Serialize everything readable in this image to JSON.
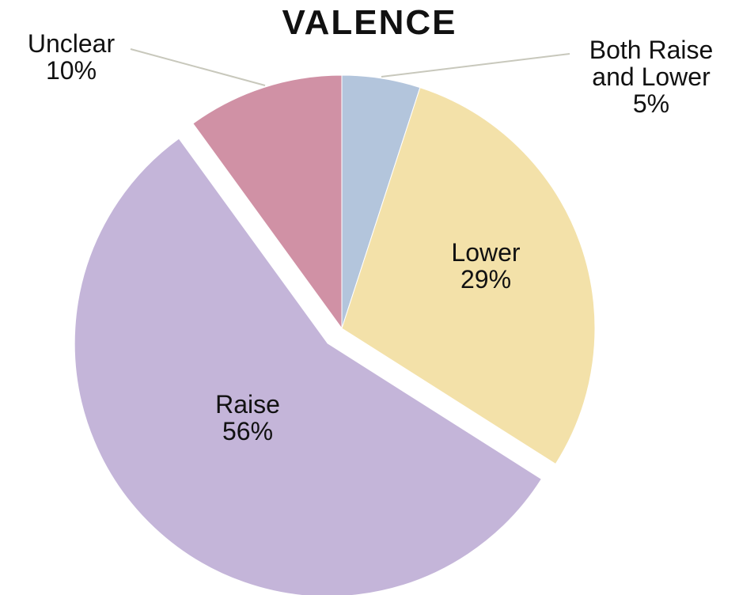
{
  "chart_data": {
    "type": "pie",
    "title": "VALENCE",
    "categories": [
      "Both Raise and Lower",
      "Lower",
      "Raise",
      "Unclear"
    ],
    "values": [
      5,
      29,
      56,
      10
    ],
    "value_labels": [
      "5%",
      "29%",
      "56%",
      "10%"
    ],
    "colors": [
      "#b3c5dc",
      "#f3e1a9",
      "#c4b5d9",
      "#d091a5"
    ]
  }
}
